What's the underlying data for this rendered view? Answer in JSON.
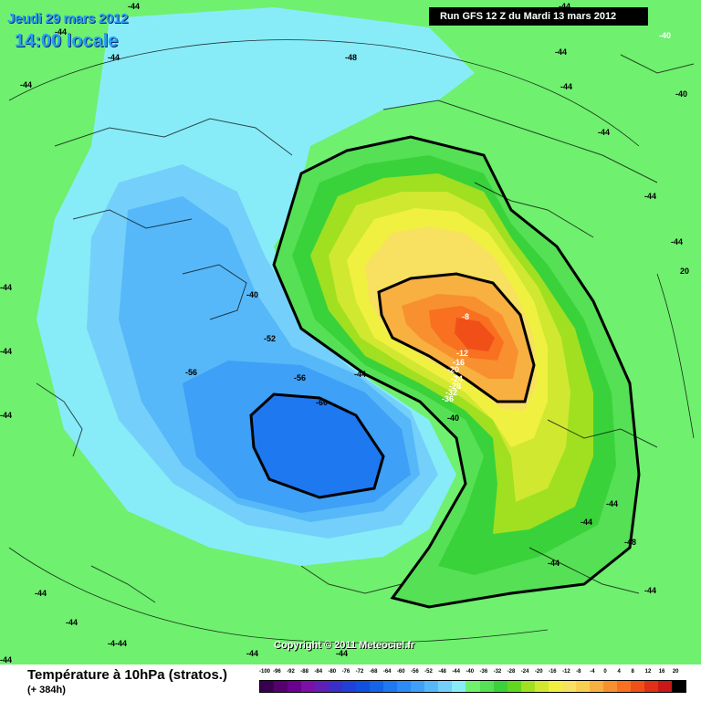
{
  "header": {
    "date": "Jeudi 29 mars 2012",
    "time": "14:00 locale",
    "run": "Run GFS 12 Z du Mardi 13 mars 2012"
  },
  "copyright": "Copyright © 2011 Meteociel.fr",
  "footer": {
    "title": "Température à 10hPa (stratos.)",
    "subtitle": "(+ 384h)"
  },
  "legend": {
    "ticks": [
      "-100",
      "-96",
      "-92",
      "-88",
      "-84",
      "-80",
      "-76",
      "-72",
      "-68",
      "-64",
      "-60",
      "-56",
      "-52",
      "-48",
      "-44",
      "-40",
      "-36",
      "-32",
      "-28",
      "-24",
      "-20",
      "-16",
      "-12",
      "-8",
      "-4",
      "0",
      "4",
      "8",
      "12",
      "16",
      "20"
    ],
    "colors": [
      "#3a0050",
      "#55006f",
      "#6a0090",
      "#7a10a8",
      "#6020b8",
      "#3a30c8",
      "#2040d8",
      "#1050e0",
      "#1464e8",
      "#1e78f0",
      "#2a8cf4",
      "#3ea0f6",
      "#56b8f8",
      "#74d0fa",
      "#88ecf8",
      "#6ff06f",
      "#55e055",
      "#3ad23a",
      "#60d820",
      "#a0e020",
      "#d0e830",
      "#f0f040",
      "#f8e060",
      "#f8d050",
      "#f8b040",
      "#f89030",
      "#f87020",
      "#f05018",
      "#e03018",
      "#c81818",
      "#000000"
    ]
  },
  "map_labels": [
    {
      "text": "-44",
      "white": false
    },
    {
      "text": "-44",
      "white": false
    },
    {
      "text": "-44",
      "white": false
    },
    {
      "text": "-48",
      "white": false
    },
    {
      "text": "-44",
      "white": false
    },
    {
      "text": "-44",
      "white": false
    },
    {
      "text": "-40",
      "white": true
    },
    {
      "text": "-44",
      "white": false
    },
    {
      "text": "-40",
      "white": false
    },
    {
      "text": "-44",
      "white": false
    },
    {
      "text": "-44",
      "white": false
    },
    {
      "text": "-44",
      "white": false
    },
    {
      "text": "-40",
      "white": false
    },
    {
      "text": "-44",
      "white": false
    },
    {
      "text": "-52",
      "white": false
    },
    {
      "text": "-56",
      "white": false
    },
    {
      "text": "-56",
      "white": false
    },
    {
      "text": "-44",
      "white": false
    },
    {
      "text": "-60",
      "white": false
    },
    {
      "text": "-8",
      "white": true
    },
    {
      "text": "-12",
      "white": true
    },
    {
      "text": "-16",
      "white": true
    },
    {
      "text": "-20",
      "white": true
    },
    {
      "text": "-24",
      "white": true
    },
    {
      "text": "-28",
      "white": true
    },
    {
      "text": "-32",
      "white": true
    },
    {
      "text": "-36",
      "white": true
    },
    {
      "text": "-40",
      "white": false
    },
    {
      "text": "-44",
      "white": false
    },
    {
      "text": "-44",
      "white": false
    },
    {
      "text": "-48",
      "white": false
    },
    {
      "text": "-44",
      "white": false
    },
    {
      "text": "-44",
      "white": false
    },
    {
      "text": "-44",
      "white": false
    },
    {
      "text": "-44",
      "white": false
    },
    {
      "text": "-4-44",
      "white": false
    },
    {
      "text": "-44",
      "white": false
    },
    {
      "text": "-44",
      "white": false
    },
    {
      "text": "-44",
      "white": false
    },
    {
      "text": "-44",
      "white": false
    },
    {
      "text": "-44",
      "white": false
    },
    {
      "text": "20",
      "white": false
    },
    {
      "text": "-44",
      "white": false
    }
  ]
}
